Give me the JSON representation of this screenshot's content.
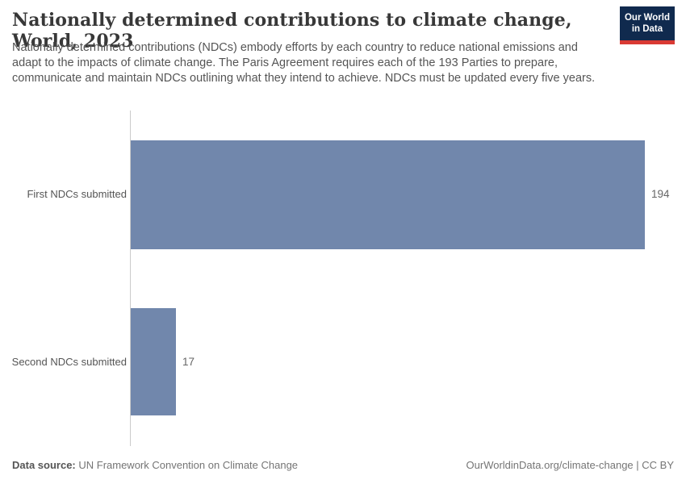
{
  "header": {
    "title": "Nationally determined contributions to climate change, World, 2023",
    "subtitle": "Nationally determined contributions (NDCs) embody efforts by each country to reduce national emissions and adapt to the impacts of climate change. The Paris Agreement requires each of the 193 Parties to prepare, communicate and maintain NDCs outlining what they intend to achieve. NDCs must be updated every five years.",
    "logo": {
      "line1": "Our World",
      "line2": "in Data",
      "bg_color": "#102a4e",
      "stripe_color": "#d93a34"
    }
  },
  "chart_data": {
    "type": "bar",
    "orientation": "horizontal",
    "title": "Nationally determined contributions to climate change, World, 2023",
    "categories": [
      "First NDCs submitted",
      "Second NDCs submitted"
    ],
    "values": [
      194,
      17
    ],
    "value_labels": [
      "194",
      "17"
    ],
    "xlim": [
      0,
      194
    ],
    "grid": false,
    "legend": "none",
    "bar_color": "#7187ac",
    "axis_color": "#cbcbcb"
  },
  "footer": {
    "source_label": "Data source:",
    "source_text": " UN Framework Convention on Climate Change",
    "credit": "OurWorldinData.org/climate-change | CC BY"
  }
}
